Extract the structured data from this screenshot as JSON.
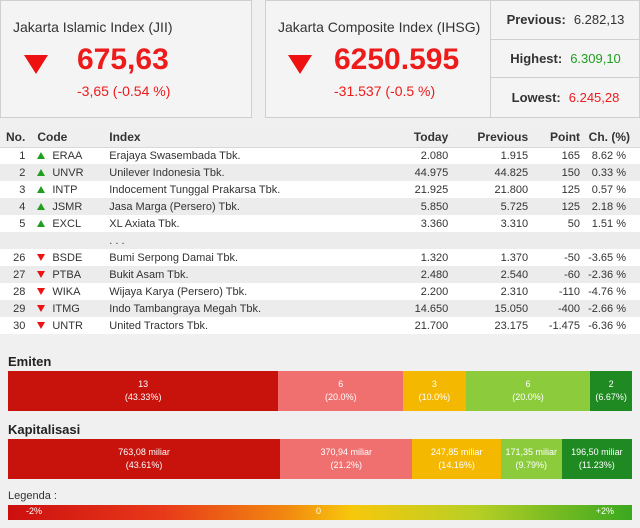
{
  "jii": {
    "title": "Jakarta Islamic Index (JII)",
    "value": "675,63",
    "change": "-3,65 (-0.54 %)"
  },
  "ihsg": {
    "title": "Jakarta Composite Index (IHSG)",
    "value": "6250.595",
    "change": "-31.537 (-0.5 %)",
    "previous_label": "Previous:",
    "previous_value": "6.282,13",
    "highest_label": "Highest:",
    "highest_value": "6.309,10",
    "lowest_label": "Lowest:",
    "lowest_value": "6.245,28"
  },
  "table": {
    "headers": [
      "No.",
      "Code",
      "Index",
      "Today",
      "Previous",
      "Point",
      "Ch. (%)"
    ],
    "top_rows": [
      {
        "no": "1",
        "code": "ERAA",
        "name": "Erajaya Swasembada Tbk.",
        "today": "2.080",
        "previous": "1.915",
        "point": "165",
        "ch": "8.62 %"
      },
      {
        "no": "2",
        "code": "UNVR",
        "name": "Unilever Indonesia Tbk.",
        "today": "44.975",
        "previous": "44.825",
        "point": "150",
        "ch": "0.33 %"
      },
      {
        "no": "3",
        "code": "INTP",
        "name": "Indocement Tunggal Prakarsa Tbk.",
        "today": "21.925",
        "previous": "21.800",
        "point": "125",
        "ch": "0.57 %"
      },
      {
        "no": "4",
        "code": "JSMR",
        "name": "Jasa Marga (Persero) Tbk.",
        "today": "5.850",
        "previous": "5.725",
        "point": "125",
        "ch": "2.18 %"
      },
      {
        "no": "5",
        "code": "EXCL",
        "name": "XL Axiata Tbk.",
        "today": "3.360",
        "previous": "3.310",
        "point": "50",
        "ch": "1.51 %"
      }
    ],
    "ellipsis": ". . .",
    "bottom_rows": [
      {
        "no": "26",
        "code": "BSDE",
        "name": "Bumi Serpong Damai Tbk.",
        "today": "1.320",
        "previous": "1.370",
        "point": "-50",
        "ch": "-3.65 %"
      },
      {
        "no": "27",
        "code": "PTBA",
        "name": "Bukit Asam Tbk.",
        "today": "2.480",
        "previous": "2.540",
        "point": "-60",
        "ch": "-2.36 %"
      },
      {
        "no": "28",
        "code": "WIKA",
        "name": "Wijaya Karya (Persero) Tbk.",
        "today": "2.200",
        "previous": "2.310",
        "point": "-110",
        "ch": "-4.76 %"
      },
      {
        "no": "29",
        "code": "ITMG",
        "name": "Indo Tambangraya Megah Tbk.",
        "today": "14.650",
        "previous": "15.050",
        "point": "-400",
        "ch": "-2.66 %"
      },
      {
        "no": "30",
        "code": "UNTR",
        "name": "United Tractors Tbk.",
        "today": "21.700",
        "previous": "23.175",
        "point": "-1.475",
        "ch": "-6.36 %"
      }
    ]
  },
  "emiten": {
    "label": "Emiten",
    "segments": [
      {
        "line1": "13",
        "line2": "(43.33%)",
        "share": 43.33,
        "color": "#c8120c"
      },
      {
        "line1": "6",
        "line2": "(20.0%)",
        "share": 20.0,
        "color": "#f07070"
      },
      {
        "line1": "3",
        "line2": "(10.0%)",
        "share": 10.0,
        "color": "#f5b800"
      },
      {
        "line1": "6",
        "line2": "(20.0%)",
        "share": 20.0,
        "color": "#8ccc3c"
      },
      {
        "line1": "2",
        "line2": "(6.67%)",
        "share": 6.67,
        "color": "#1f8a22"
      }
    ]
  },
  "kapitalisasi": {
    "label": "Kapitalisasi",
    "segments": [
      {
        "line1": "763,08 miliar",
        "line2": "(43.61%)",
        "share": 43.61,
        "color": "#c8120c"
      },
      {
        "line1": "370,94 miliar",
        "line2": "(21.2%)",
        "share": 21.2,
        "color": "#f07070"
      },
      {
        "line1": "247,85 miliar",
        "line2": "(14.16%)",
        "share": 14.16,
        "color": "#f5b800"
      },
      {
        "line1": "171,35 miliar",
        "line2": "(9.79%)",
        "share": 9.79,
        "color": "#8ccc3c"
      },
      {
        "line1": "196,50 miliar",
        "line2": "(11.23%)",
        "share": 11.23,
        "color": "#1f8a22"
      }
    ]
  },
  "legend": {
    "label": "Legenda :",
    "min": "-2%",
    "mid": "0",
    "max": "+2%"
  },
  "colors": {
    "down_red": "#ee1b1b",
    "up_green": "#1f9e1f"
  }
}
